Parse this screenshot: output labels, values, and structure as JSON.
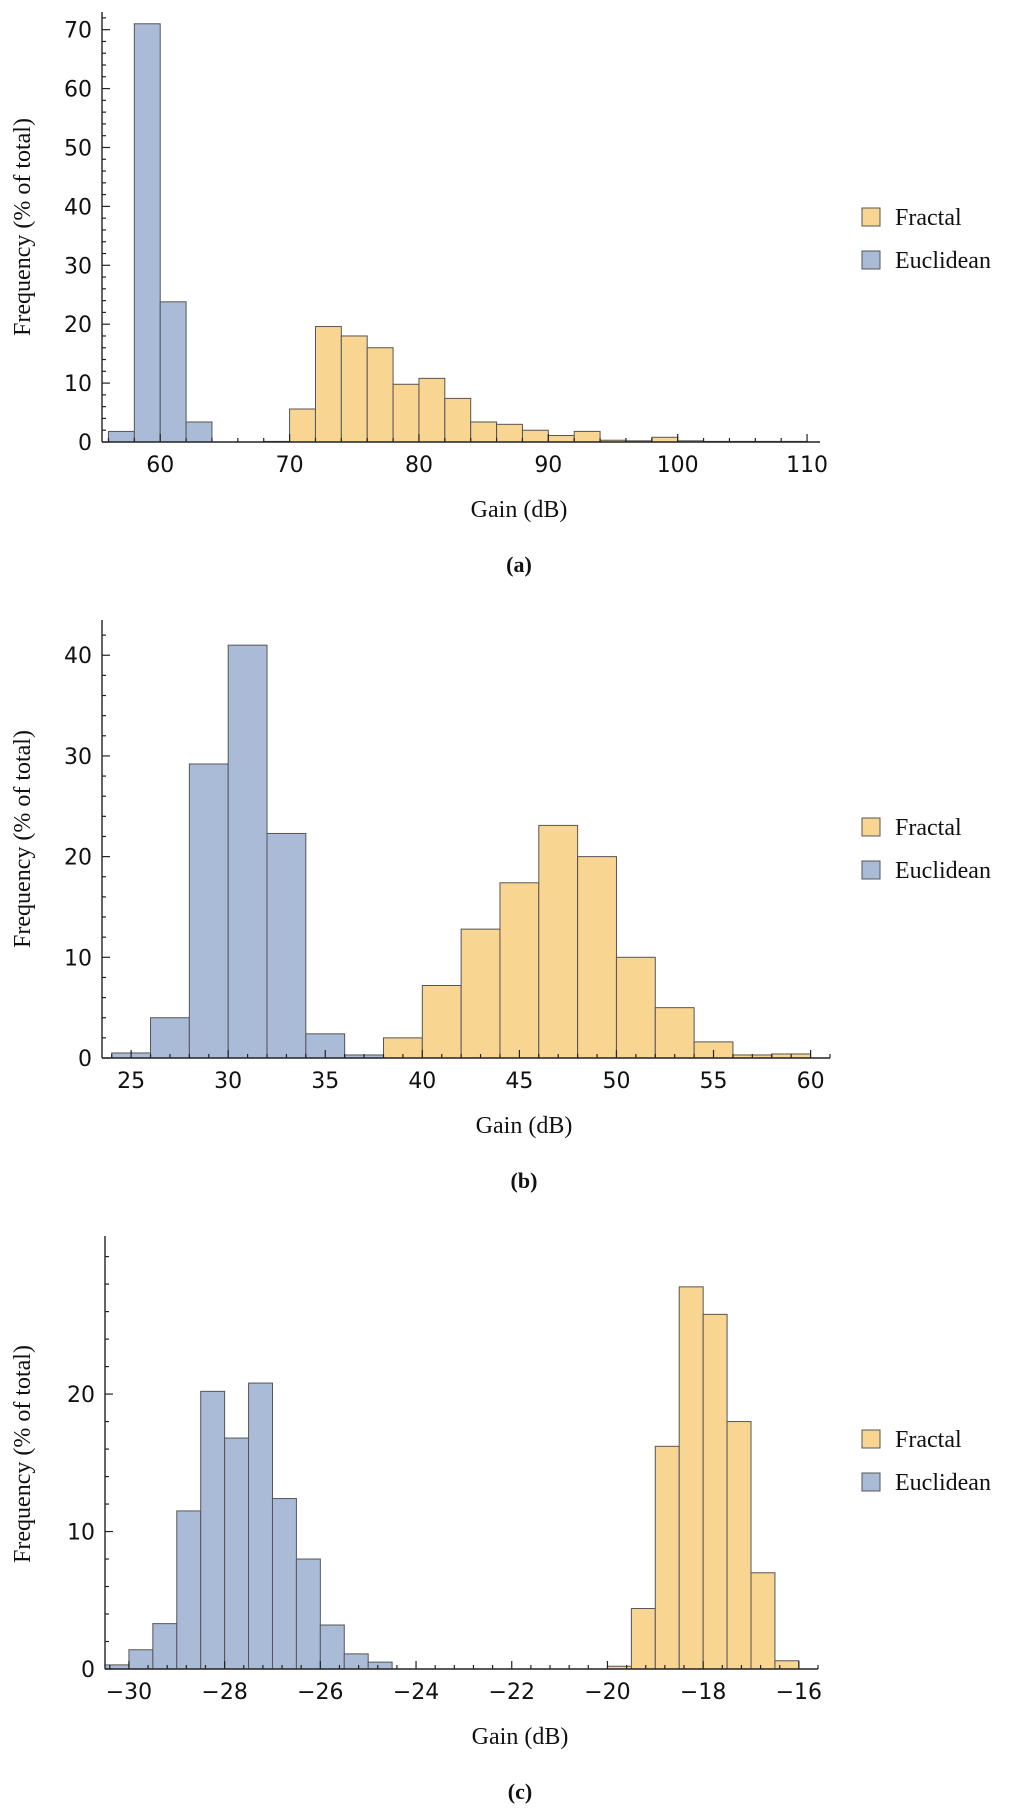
{
  "colors": {
    "fractal_fill": "#f9d592",
    "euclidean_fill": "#aabbd8"
  },
  "chart_data": [
    {
      "type": "bar",
      "caption": "(a)",
      "xlabel": "Gain (dB)",
      "ylabel": "Frequency (% of total)",
      "xlim": [
        55.5,
        111
      ],
      "ylim": [
        0,
        73
      ],
      "xticks": [
        60,
        70,
        80,
        90,
        100,
        110
      ],
      "xtick_labels": [
        "60",
        "70",
        "80",
        "90",
        "100",
        "110"
      ],
      "yticks": [
        0,
        10,
        20,
        30,
        40,
        50,
        60,
        70
      ],
      "ytick_labels": [
        "0",
        "10",
        "20",
        "30",
        "40",
        "50",
        "60",
        "70"
      ],
      "bin_width": 2,
      "legend": [
        "Fractal",
        "Euclidean"
      ],
      "legend_placement": "right",
      "series": [
        {
          "name": "Fractal",
          "color_key": "fractal_fill",
          "bins": [
            [
              68,
              0.1
            ],
            [
              70,
              5.6
            ],
            [
              72,
              19.6
            ],
            [
              74,
              18
            ],
            [
              76,
              16
            ],
            [
              78,
              9.8
            ],
            [
              80,
              10.8
            ],
            [
              82,
              7.4
            ],
            [
              84,
              3.4
            ],
            [
              86,
              3
            ],
            [
              88,
              2
            ],
            [
              90,
              1.1
            ],
            [
              92,
              1.8
            ],
            [
              94,
              0.3
            ],
            [
              96,
              0.2
            ],
            [
              98,
              0.8
            ],
            [
              100,
              0.2
            ],
            [
              102,
              0.1
            ],
            [
              104,
              0.1
            ],
            [
              106,
              0.1
            ],
            [
              108,
              0.1
            ]
          ]
        },
        {
          "name": "Euclidean",
          "color_key": "euclidean_fill",
          "bins": [
            [
              56,
              1.8
            ],
            [
              58,
              71
            ],
            [
              60,
              23.8
            ],
            [
              62,
              3.4
            ]
          ]
        }
      ]
    },
    {
      "type": "bar",
      "caption": "(b)",
      "xlabel": "Gain (dB)",
      "ylabel": "Frequency (% of total)",
      "xlim": [
        23.5,
        61
      ],
      "ylim": [
        0,
        43.5
      ],
      "xticks": [
        25,
        30,
        35,
        40,
        45,
        50,
        55,
        60
      ],
      "xtick_labels": [
        "25",
        "30",
        "35",
        "40",
        "45",
        "50",
        "55",
        "60"
      ],
      "yticks": [
        0,
        10,
        20,
        30,
        40
      ],
      "ytick_labels": [
        "0",
        "10",
        "20",
        "30",
        "40"
      ],
      "bin_width": 2,
      "legend": [
        "Fractal",
        "Euclidean"
      ],
      "legend_placement": "right",
      "series": [
        {
          "name": "Fractal",
          "color_key": "fractal_fill",
          "bins": [
            [
              38,
              2
            ],
            [
              40,
              7.2
            ],
            [
              42,
              12.8
            ],
            [
              44,
              17.4
            ],
            [
              46,
              23.1
            ],
            [
              48,
              20
            ],
            [
              50,
              10
            ],
            [
              52,
              5
            ],
            [
              54,
              1.6
            ],
            [
              56,
              0.3
            ],
            [
              58,
              0.4
            ]
          ]
        },
        {
          "name": "Euclidean",
          "color_key": "euclidean_fill",
          "bins": [
            [
              24,
              0.5
            ],
            [
              26,
              4
            ],
            [
              28,
              29.2
            ],
            [
              30,
              41
            ],
            [
              32,
              22.3
            ],
            [
              34,
              2.4
            ],
            [
              36,
              0.3
            ]
          ]
        }
      ]
    },
    {
      "type": "bar",
      "caption": "(c)",
      "xlabel": "Gain (dB)",
      "ylabel": "Frequency (% of total)",
      "xlim": [
        -30.5,
        -15.6
      ],
      "ylim": [
        0,
        31.5
      ],
      "xticks": [
        -30,
        -28,
        -26,
        -24,
        -22,
        -20,
        -18,
        -16
      ],
      "xtick_labels": [
        "−30",
        "−28",
        "−26",
        "−24",
        "−22",
        "−20",
        "−18",
        "−16"
      ],
      "yticks": [
        0,
        10,
        20
      ],
      "ytick_labels": [
        "0",
        "10",
        "20"
      ],
      "bin_width": 0.5,
      "legend": [
        "Fractal",
        "Euclidean"
      ],
      "legend_placement": "right",
      "series": [
        {
          "name": "Fractal",
          "color_key": "fractal_fill",
          "bins": [
            [
              -20,
              0.2
            ],
            [
              -19.5,
              4.4
            ],
            [
              -19,
              16.2
            ],
            [
              -18.5,
              27.8
            ],
            [
              -18,
              25.8
            ],
            [
              -17.5,
              18
            ],
            [
              -17,
              7
            ],
            [
              -16.5,
              0.6
            ]
          ]
        },
        {
          "name": "Euclidean",
          "color_key": "euclidean_fill",
          "bins": [
            [
              -30.5,
              0.3
            ],
            [
              -30,
              1.4
            ],
            [
              -29.5,
              3.3
            ],
            [
              -29,
              11.5
            ],
            [
              -28.5,
              20.2
            ],
            [
              -28,
              16.8
            ],
            [
              -27.5,
              20.8
            ],
            [
              -27,
              12.4
            ],
            [
              -26.5,
              8
            ],
            [
              -26,
              3.2
            ],
            [
              -25.5,
              1.1
            ],
            [
              -25,
              0.5
            ]
          ]
        }
      ]
    }
  ]
}
